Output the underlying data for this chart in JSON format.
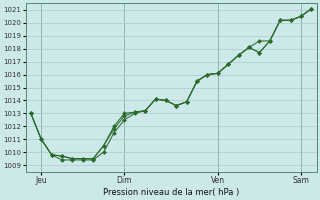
{
  "title": "",
  "xlabel": "Pression niveau de la mer( hPa )",
  "ylabel": "",
  "bg_color": "#cce8e8",
  "grid_color": "#aacccc",
  "line_color": "#2d6b2d",
  "marker_color": "#2d6b2d",
  "ylim": [
    1008.5,
    1021.5
  ],
  "yticks": [
    1009,
    1010,
    1011,
    1012,
    1013,
    1014,
    1015,
    1016,
    1017,
    1018,
    1019,
    1020,
    1021
  ],
  "line1": [
    1013.0,
    1011.0,
    1009.8,
    1009.7,
    1009.5,
    1009.5,
    1009.5,
    1010.5,
    1011.8,
    1012.8,
    1013.1,
    1013.2,
    1014.1,
    1014.0,
    1013.6,
    1013.9,
    1015.5,
    1016.0,
    1016.1,
    1016.8,
    1017.5,
    1018.1,
    1017.7,
    1018.6,
    1020.2,
    1020.2,
    1020.5,
    1021.1
  ],
  "line2": [
    1013.0,
    1011.0,
    1009.8,
    1009.7,
    1009.5,
    1009.5,
    1009.5,
    1010.5,
    1012.0,
    1013.0,
    1013.1,
    1013.2,
    1014.1,
    1014.0,
    1013.6,
    1013.9,
    1015.5,
    1016.0,
    1016.1,
    1016.8,
    1017.5,
    1018.1,
    1018.6,
    1018.6,
    1020.2,
    1020.2,
    1020.5,
    1021.1
  ],
  "line3": [
    1013.0,
    1011.0,
    1009.8,
    1009.4,
    1009.4,
    1009.4,
    1009.4,
    1010.0,
    1011.5,
    1012.5,
    1013.0,
    1013.2,
    1014.1,
    1014.0,
    1013.6,
    1013.9,
    1015.5,
    1016.0,
    1016.1,
    1016.8,
    1017.5,
    1018.1,
    1017.7,
    1018.6,
    1020.2,
    1020.2,
    1020.5,
    1021.1
  ],
  "n_points": 28,
  "xlim": [
    -0.5,
    27.5
  ],
  "vline_x": [
    1,
    9,
    18,
    26
  ],
  "xtick_positions": [
    1,
    9,
    18,
    26
  ],
  "xtick_labels": [
    "Jeu",
    "Dim",
    "Ven",
    "Sam"
  ],
  "spine_color": "#4a8a6a",
  "vline_color": "#4a8a6a"
}
